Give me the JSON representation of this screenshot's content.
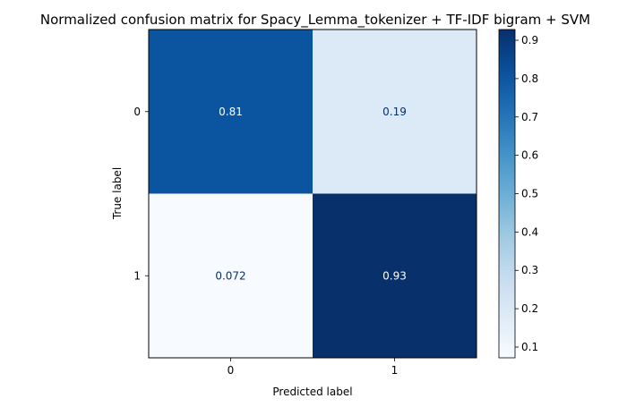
{
  "chart_data": {
    "type": "heatmap",
    "title": "Normalized confusion matrix for Spacy_Lemma_tokenizer + TF-IDF bigram + SVM",
    "xlabel": "Predicted label",
    "ylabel": "True label",
    "x_categories": [
      "0",
      "1"
    ],
    "y_categories": [
      "0",
      "1"
    ],
    "matrix": [
      [
        0.81,
        0.19
      ],
      [
        0.072,
        0.93
      ]
    ],
    "cell_labels": [
      [
        "0.81",
        "0.19"
      ],
      [
        "0.072",
        "0.93"
      ]
    ],
    "colormap": "Blues",
    "colorbar": {
      "range": [
        0.072,
        0.928
      ],
      "ticks": [
        0.1,
        0.2,
        0.3,
        0.4,
        0.5,
        0.6,
        0.7,
        0.8,
        0.9
      ],
      "tick_labels": [
        "0.1",
        "0.2",
        "0.3",
        "0.4",
        "0.5",
        "0.6",
        "0.7",
        "0.8",
        "0.9"
      ]
    },
    "grid": false
  }
}
